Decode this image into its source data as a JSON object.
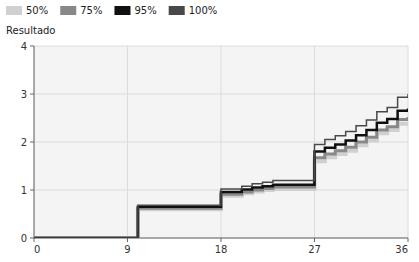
{
  "chart_data": {
    "type": "step",
    "ylabel": "Resultado",
    "x": [
      0,
      1,
      2,
      3,
      4,
      5,
      6,
      7,
      8,
      9,
      10,
      11,
      12,
      13,
      14,
      15,
      16,
      17,
      18,
      19,
      20,
      21,
      22,
      23,
      24,
      25,
      26,
      27,
      28,
      29,
      30,
      31,
      32,
      33,
      34,
      35,
      36
    ],
    "xlim": [
      0,
      36
    ],
    "ylim": [
      0,
      4
    ],
    "xticks": [
      0,
      9,
      18,
      27,
      36
    ],
    "yticks": [
      0,
      1,
      2,
      3,
      4
    ],
    "grid": true,
    "series": [
      {
        "name": "50%",
        "color": "#d0d0d0",
        "values": [
          0,
          0,
          0,
          0,
          0,
          0,
          0,
          0,
          0,
          0.0,
          0.6,
          0.6,
          0.6,
          0.6,
          0.6,
          0.6,
          0.6,
          0.6,
          0.88,
          0.88,
          0.93,
          0.97,
          1.0,
          1.02,
          1.02,
          1.02,
          1.02,
          1.6,
          1.68,
          1.75,
          1.82,
          1.93,
          2.03,
          2.18,
          2.25,
          2.38,
          2.42
        ]
      },
      {
        "name": "75%",
        "color": "#888888",
        "values": [
          0,
          0,
          0,
          0,
          0,
          0,
          0,
          0,
          0,
          0.0,
          0.62,
          0.62,
          0.62,
          0.62,
          0.62,
          0.62,
          0.62,
          0.62,
          0.91,
          0.91,
          0.96,
          1.0,
          1.03,
          1.06,
          1.06,
          1.06,
          1.06,
          1.67,
          1.75,
          1.82,
          1.89,
          2.0,
          2.1,
          2.25,
          2.32,
          2.47,
          2.52
        ]
      },
      {
        "name": "95%",
        "color": "#101010",
        "values": [
          0,
          0,
          0,
          0,
          0,
          0,
          0,
          0,
          0,
          0.0,
          0.65,
          0.65,
          0.65,
          0.65,
          0.65,
          0.65,
          0.65,
          0.65,
          0.96,
          0.96,
          1.01,
          1.05,
          1.08,
          1.11,
          1.11,
          1.11,
          1.11,
          1.8,
          1.88,
          1.95,
          2.03,
          2.14,
          2.25,
          2.4,
          2.48,
          2.65,
          2.7
        ]
      },
      {
        "name": "100%",
        "color": "#484848",
        "values": [
          0,
          0,
          0,
          0,
          0,
          0,
          0,
          0,
          0,
          0.0,
          0.68,
          0.68,
          0.68,
          0.68,
          0.68,
          0.68,
          0.68,
          0.68,
          1.02,
          1.02,
          1.08,
          1.13,
          1.16,
          1.2,
          1.2,
          1.2,
          1.2,
          1.95,
          2.05,
          2.13,
          2.22,
          2.34,
          2.46,
          2.63,
          2.72,
          2.93,
          3.0
        ]
      }
    ]
  }
}
